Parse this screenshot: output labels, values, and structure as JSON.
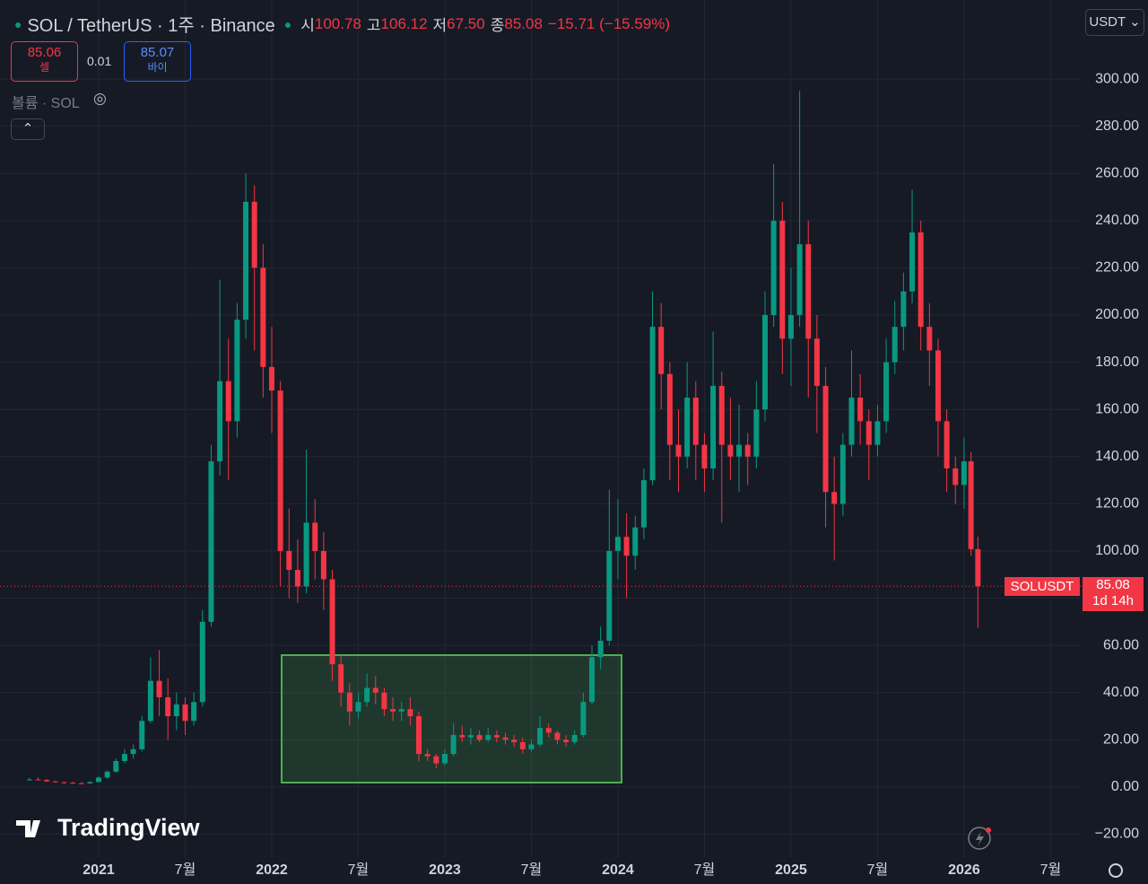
{
  "header": {
    "symbol": "SOL / TetherUS · 1주 · Binance",
    "ohlc": [
      {
        "label": "시",
        "value": "100.78"
      },
      {
        "label": "고",
        "value": "106.12"
      },
      {
        "label": "저",
        "value": "67.50"
      },
      {
        "label": "종",
        "value": "85.08"
      }
    ],
    "change": "−15.71 (−15.59%)",
    "currency": "USDT",
    "sell": {
      "price": "85.06",
      "label": "셀"
    },
    "spread": "0.01",
    "buy": {
      "price": "85.07",
      "label": "바이"
    },
    "volume": "볼륨 · SOL",
    "symbol_tag": "SOLUSDT",
    "last_price": "85.08",
    "countdown": "1d 14h",
    "brand": "TradingView"
  },
  "chart_data": {
    "type": "candlestick",
    "up_color": "#089981",
    "down_color": "#f23645",
    "grid": true,
    "xlim": [
      2020.43,
      2026.674
    ],
    "ylim": [
      -29.7,
      333.5
    ],
    "xticks": [
      2021,
      {
        "value": 2021.5,
        "label": "7월"
      },
      2022,
      {
        "value": 2022.5,
        "label": "7월"
      },
      2023,
      {
        "value": 2023.5,
        "label": "7월"
      },
      2024,
      {
        "value": 2024.5,
        "label": "7월"
      },
      2025,
      {
        "value": 2025.5,
        "label": "7월"
      },
      2026,
      {
        "value": 2026.5,
        "label": "7월"
      }
    ],
    "yticks": [
      {
        "value": -20,
        "label": "−20.00"
      },
      {
        "value": 0,
        "label": "0.00"
      },
      {
        "value": 20,
        "label": "20.00"
      },
      {
        "value": 40,
        "label": "40.00"
      },
      {
        "value": 60,
        "label": "60.00"
      },
      {
        "value": 80,
        "label": "80.00"
      },
      {
        "value": 100,
        "label": "100.00"
      },
      {
        "value": 120,
        "label": "120.00"
      },
      {
        "value": 140,
        "label": "140.00"
      },
      {
        "value": 160,
        "label": "160.00"
      },
      {
        "value": 180,
        "label": "180.00"
      },
      {
        "value": 200,
        "label": "200.00"
      },
      {
        "value": 220,
        "label": "220.00"
      },
      {
        "value": 240,
        "label": "240.00"
      },
      {
        "value": 260,
        "label": "260.00"
      },
      {
        "value": 280,
        "label": "280.00"
      },
      {
        "value": 300,
        "label": "300.00"
      }
    ],
    "x": [
      2020.6,
      2020.65,
      2020.7,
      2020.75,
      2020.8,
      2020.85,
      2020.9,
      2020.95,
      2021,
      2021.05,
      2021.1,
      2021.15,
      2021.2,
      2021.25,
      2021.3,
      2021.35,
      2021.4,
      2021.45,
      2021.5,
      2021.55,
      2021.6,
      2021.65,
      2021.7,
      2021.75,
      2021.8,
      2021.85,
      2021.9,
      2021.95,
      2022,
      2022.05,
      2022.1,
      2022.15,
      2022.2,
      2022.25,
      2022.3,
      2022.35,
      2022.4,
      2022.45,
      2022.5,
      2022.55,
      2022.6,
      2022.65,
      2022.7,
      2022.75,
      2022.8,
      2022.85,
      2022.9,
      2022.95,
      2023,
      2023.05,
      2023.1,
      2023.15,
      2023.2,
      2023.25,
      2023.3,
      2023.35,
      2023.4,
      2023.45,
      2023.5,
      2023.55,
      2023.6,
      2023.65,
      2023.7,
      2023.75,
      2023.8,
      2023.85,
      2023.9,
      2023.95,
      2024,
      2024.05,
      2024.1,
      2024.15,
      2024.2,
      2024.25,
      2024.3,
      2024.35,
      2024.4,
      2024.45,
      2024.5,
      2024.55,
      2024.6,
      2024.65,
      2024.7,
      2024.75,
      2024.8,
      2024.85,
      2024.9,
      2024.95,
      2025,
      2025.05,
      2025.1,
      2025.15,
      2025.2,
      2025.25,
      2025.3,
      2025.35,
      2025.4,
      2025.45,
      2025.5,
      2025.55,
      2025.6,
      2025.65,
      2025.7,
      2025.75,
      2025.8,
      2025.85,
      2025.9,
      2025.95,
      2026,
      2026.04,
      2026.08
    ],
    "open": [
      3,
      3.2,
      3,
      2.4,
      2,
      1.8,
      1.6,
      1.5,
      2.1,
      4,
      6.5,
      11,
      14,
      16,
      28,
      45,
      38,
      30,
      35,
      28,
      36,
      70,
      138,
      172,
      155,
      198,
      248,
      220,
      178,
      168,
      100,
      92,
      85,
      112,
      100,
      88,
      52,
      40,
      32,
      36,
      42,
      40,
      33,
      32,
      33,
      30,
      14,
      13,
      10,
      14,
      22,
      21,
      22,
      20,
      22,
      21,
      20,
      19,
      16,
      18,
      25,
      23,
      20,
      19,
      22,
      36,
      55,
      62,
      100,
      106,
      98,
      110,
      130,
      195,
      175,
      145,
      140,
      165,
      145,
      135,
      170,
      145,
      140,
      145,
      140,
      160,
      200,
      240,
      190,
      200,
      230,
      190,
      170,
      125,
      120,
      145,
      165,
      155,
      145,
      155,
      180,
      195,
      210,
      235,
      195,
      185,
      155,
      135,
      128,
      138,
      100.78
    ],
    "high": [
      3.8,
      4,
      3.3,
      2.6,
      2.3,
      2.2,
      2,
      2.4,
      4.5,
      7,
      12,
      16,
      18,
      30,
      55,
      58,
      46,
      40,
      38,
      40,
      75,
      145,
      215,
      190,
      205,
      260,
      255,
      230,
      195,
      172,
      118,
      105,
      143,
      122,
      108,
      92,
      56,
      44,
      40,
      48,
      47,
      42,
      38,
      36,
      38,
      32,
      16,
      14,
      16,
      27,
      26,
      25,
      24,
      25,
      24,
      23,
      22,
      21,
      20,
      30,
      27,
      24,
      22,
      24,
      40,
      60,
      68,
      126,
      122,
      116,
      115,
      135,
      210,
      205,
      180,
      160,
      180,
      172,
      150,
      193,
      176,
      165,
      162,
      150,
      172,
      210,
      264,
      248,
      220,
      295,
      240,
      200,
      178,
      140,
      150,
      185,
      175,
      160,
      162,
      190,
      206,
      218,
      253,
      240,
      205,
      190,
      160,
      140,
      148,
      142,
      106.12
    ],
    "low": [
      2.6,
      2.8,
      2.2,
      1.8,
      1.5,
      1.4,
      1.2,
      1.4,
      1.9,
      3.5,
      6,
      10,
      12,
      15,
      27,
      30,
      20,
      24,
      22,
      26,
      34,
      68,
      132,
      130,
      148,
      190,
      185,
      165,
      150,
      85,
      80,
      78,
      82,
      88,
      75,
      45,
      34,
      26,
      29,
      34,
      35,
      30,
      28,
      28,
      26,
      11,
      11,
      8,
      9,
      13,
      19,
      18,
      19,
      19,
      19,
      18,
      17,
      14,
      15,
      17,
      21,
      18,
      17,
      18,
      21,
      35,
      50,
      60,
      88,
      80,
      92,
      105,
      128,
      160,
      130,
      125,
      135,
      130,
      125,
      130,
      112,
      130,
      125,
      128,
      135,
      155,
      195,
      175,
      170,
      195,
      165,
      150,
      110,
      96,
      115,
      140,
      145,
      130,
      140,
      150,
      175,
      185,
      205,
      185,
      170,
      140,
      125,
      120,
      118,
      98,
      67.5
    ],
    "close": [
      3.2,
      3,
      2.4,
      2,
      1.8,
      1.6,
      1.5,
      2.1,
      4,
      6.5,
      11,
      14,
      16,
      28,
      45,
      38,
      30,
      35,
      28,
      36,
      70,
      138,
      172,
      155,
      198,
      248,
      220,
      178,
      168,
      100,
      92,
      85,
      112,
      100,
      88,
      52,
      40,
      32,
      36,
      42,
      40,
      33,
      32,
      33,
      30,
      14,
      13,
      10,
      14,
      22,
      21,
      22,
      20,
      22,
      21,
      20,
      19,
      16,
      18,
      25,
      23,
      20,
      19,
      22,
      36,
      55,
      62,
      100,
      106,
      98,
      110,
      130,
      195,
      175,
      145,
      140,
      165,
      145,
      135,
      170,
      145,
      140,
      145,
      140,
      160,
      200,
      240,
      190,
      200,
      230,
      190,
      170,
      125,
      120,
      145,
      165,
      155,
      145,
      155,
      180,
      195,
      210,
      235,
      195,
      185,
      155,
      135,
      128,
      138,
      100.78,
      85.08
    ]
  }
}
